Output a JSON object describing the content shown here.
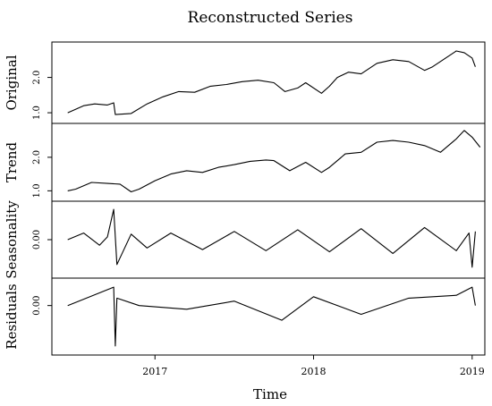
{
  "chart_data": {
    "type": "line",
    "title": "Reconstructed Series",
    "xlabel": "Time",
    "xlim": [
      2016.35,
      2019.08
    ],
    "x_ticks": [
      {
        "value": 2017,
        "label": "2017"
      },
      {
        "value": 2018,
        "label": "2018"
      },
      {
        "value": 2019,
        "label": "2019"
      }
    ],
    "panels": [
      {
        "name": "Original",
        "ylabel": "Original",
        "ylim": [
          0.85,
          2.85
        ],
        "y_ticks": [
          {
            "value": 1.0,
            "label": "1.0"
          },
          {
            "value": 2.0,
            "label": "2.0"
          }
        ],
        "x": [
          2016.45,
          2016.55,
          2016.62,
          2016.7,
          2016.74,
          2016.75,
          2016.85,
          2016.95,
          2017.05,
          2017.15,
          2017.25,
          2017.35,
          2017.45,
          2017.55,
          2017.65,
          2017.75,
          2017.82,
          2017.9,
          2017.95,
          2018.05,
          2018.1,
          2018.15,
          2018.22,
          2018.3,
          2018.4,
          2018.5,
          2018.6,
          2018.7,
          2018.75,
          2018.85,
          2018.9,
          2018.95,
          2019.0,
          2019.02
        ],
        "values": [
          1.0,
          1.2,
          1.25,
          1.22,
          1.28,
          0.95,
          0.98,
          1.25,
          1.45,
          1.6,
          1.58,
          1.75,
          1.8,
          1.88,
          1.92,
          1.85,
          1.6,
          1.7,
          1.85,
          1.55,
          1.75,
          2.0,
          2.15,
          2.1,
          2.4,
          2.5,
          2.45,
          2.2,
          2.3,
          2.6,
          2.75,
          2.7,
          2.55,
          2.3
        ]
      },
      {
        "name": "Trend",
        "ylabel": "Trend",
        "ylim": [
          0.85,
          2.85
        ],
        "y_ticks": [
          {
            "value": 1.0,
            "label": "1.0"
          },
          {
            "value": 2.0,
            "label": "2.0"
          }
        ],
        "x": [
          2016.45,
          2016.5,
          2016.6,
          2016.7,
          2016.78,
          2016.85,
          2016.9,
          2017.0,
          2017.1,
          2017.2,
          2017.3,
          2017.4,
          2017.5,
          2017.6,
          2017.7,
          2017.75,
          2017.85,
          2017.95,
          2018.05,
          2018.1,
          2018.2,
          2018.3,
          2018.4,
          2018.5,
          2018.6,
          2018.7,
          2018.8,
          2018.9,
          2018.95,
          2019.0,
          2019.05
        ],
        "values": [
          1.0,
          1.05,
          1.25,
          1.22,
          1.2,
          0.97,
          1.05,
          1.3,
          1.5,
          1.6,
          1.55,
          1.7,
          1.78,
          1.88,
          1.92,
          1.9,
          1.6,
          1.85,
          1.55,
          1.7,
          2.1,
          2.15,
          2.45,
          2.5,
          2.45,
          2.35,
          2.15,
          2.55,
          2.8,
          2.6,
          2.3
        ]
      },
      {
        "name": "Seasonality",
        "ylabel": "Seasonality",
        "ylim": [
          -0.6,
          0.6
        ],
        "y_ticks": [
          {
            "value": 0.0,
            "label": "0.00"
          }
        ],
        "x": [
          2016.45,
          2016.55,
          2016.65,
          2016.7,
          2016.74,
          2016.76,
          2016.85,
          2016.95,
          2017.1,
          2017.3,
          2017.5,
          2017.7,
          2017.9,
          2018.1,
          2018.3,
          2018.5,
          2018.7,
          2018.9,
          2018.98,
          2019.0,
          2019.02
        ],
        "values": [
          0.0,
          0.12,
          -0.1,
          0.05,
          0.55,
          -0.45,
          0.1,
          -0.15,
          0.12,
          -0.18,
          0.15,
          -0.2,
          0.18,
          -0.22,
          0.2,
          -0.25,
          0.22,
          -0.2,
          0.12,
          -0.5,
          0.15
        ]
      },
      {
        "name": "Residuals",
        "ylabel": "Residuals",
        "ylim": [
          -0.6,
          0.3
        ],
        "y_ticks": [
          {
            "value": 0.0,
            "label": "0.00"
          }
        ],
        "x": [
          2016.45,
          2016.74,
          2016.75,
          2016.76,
          2016.9,
          2017.2,
          2017.5,
          2017.8,
          2018.0,
          2018.3,
          2018.6,
          2018.9,
          2019.0,
          2019.02
        ],
        "values": [
          0.0,
          0.25,
          -0.55,
          0.1,
          0.0,
          -0.05,
          0.06,
          -0.2,
          0.12,
          -0.12,
          0.1,
          0.14,
          0.25,
          0.0
        ]
      }
    ]
  }
}
